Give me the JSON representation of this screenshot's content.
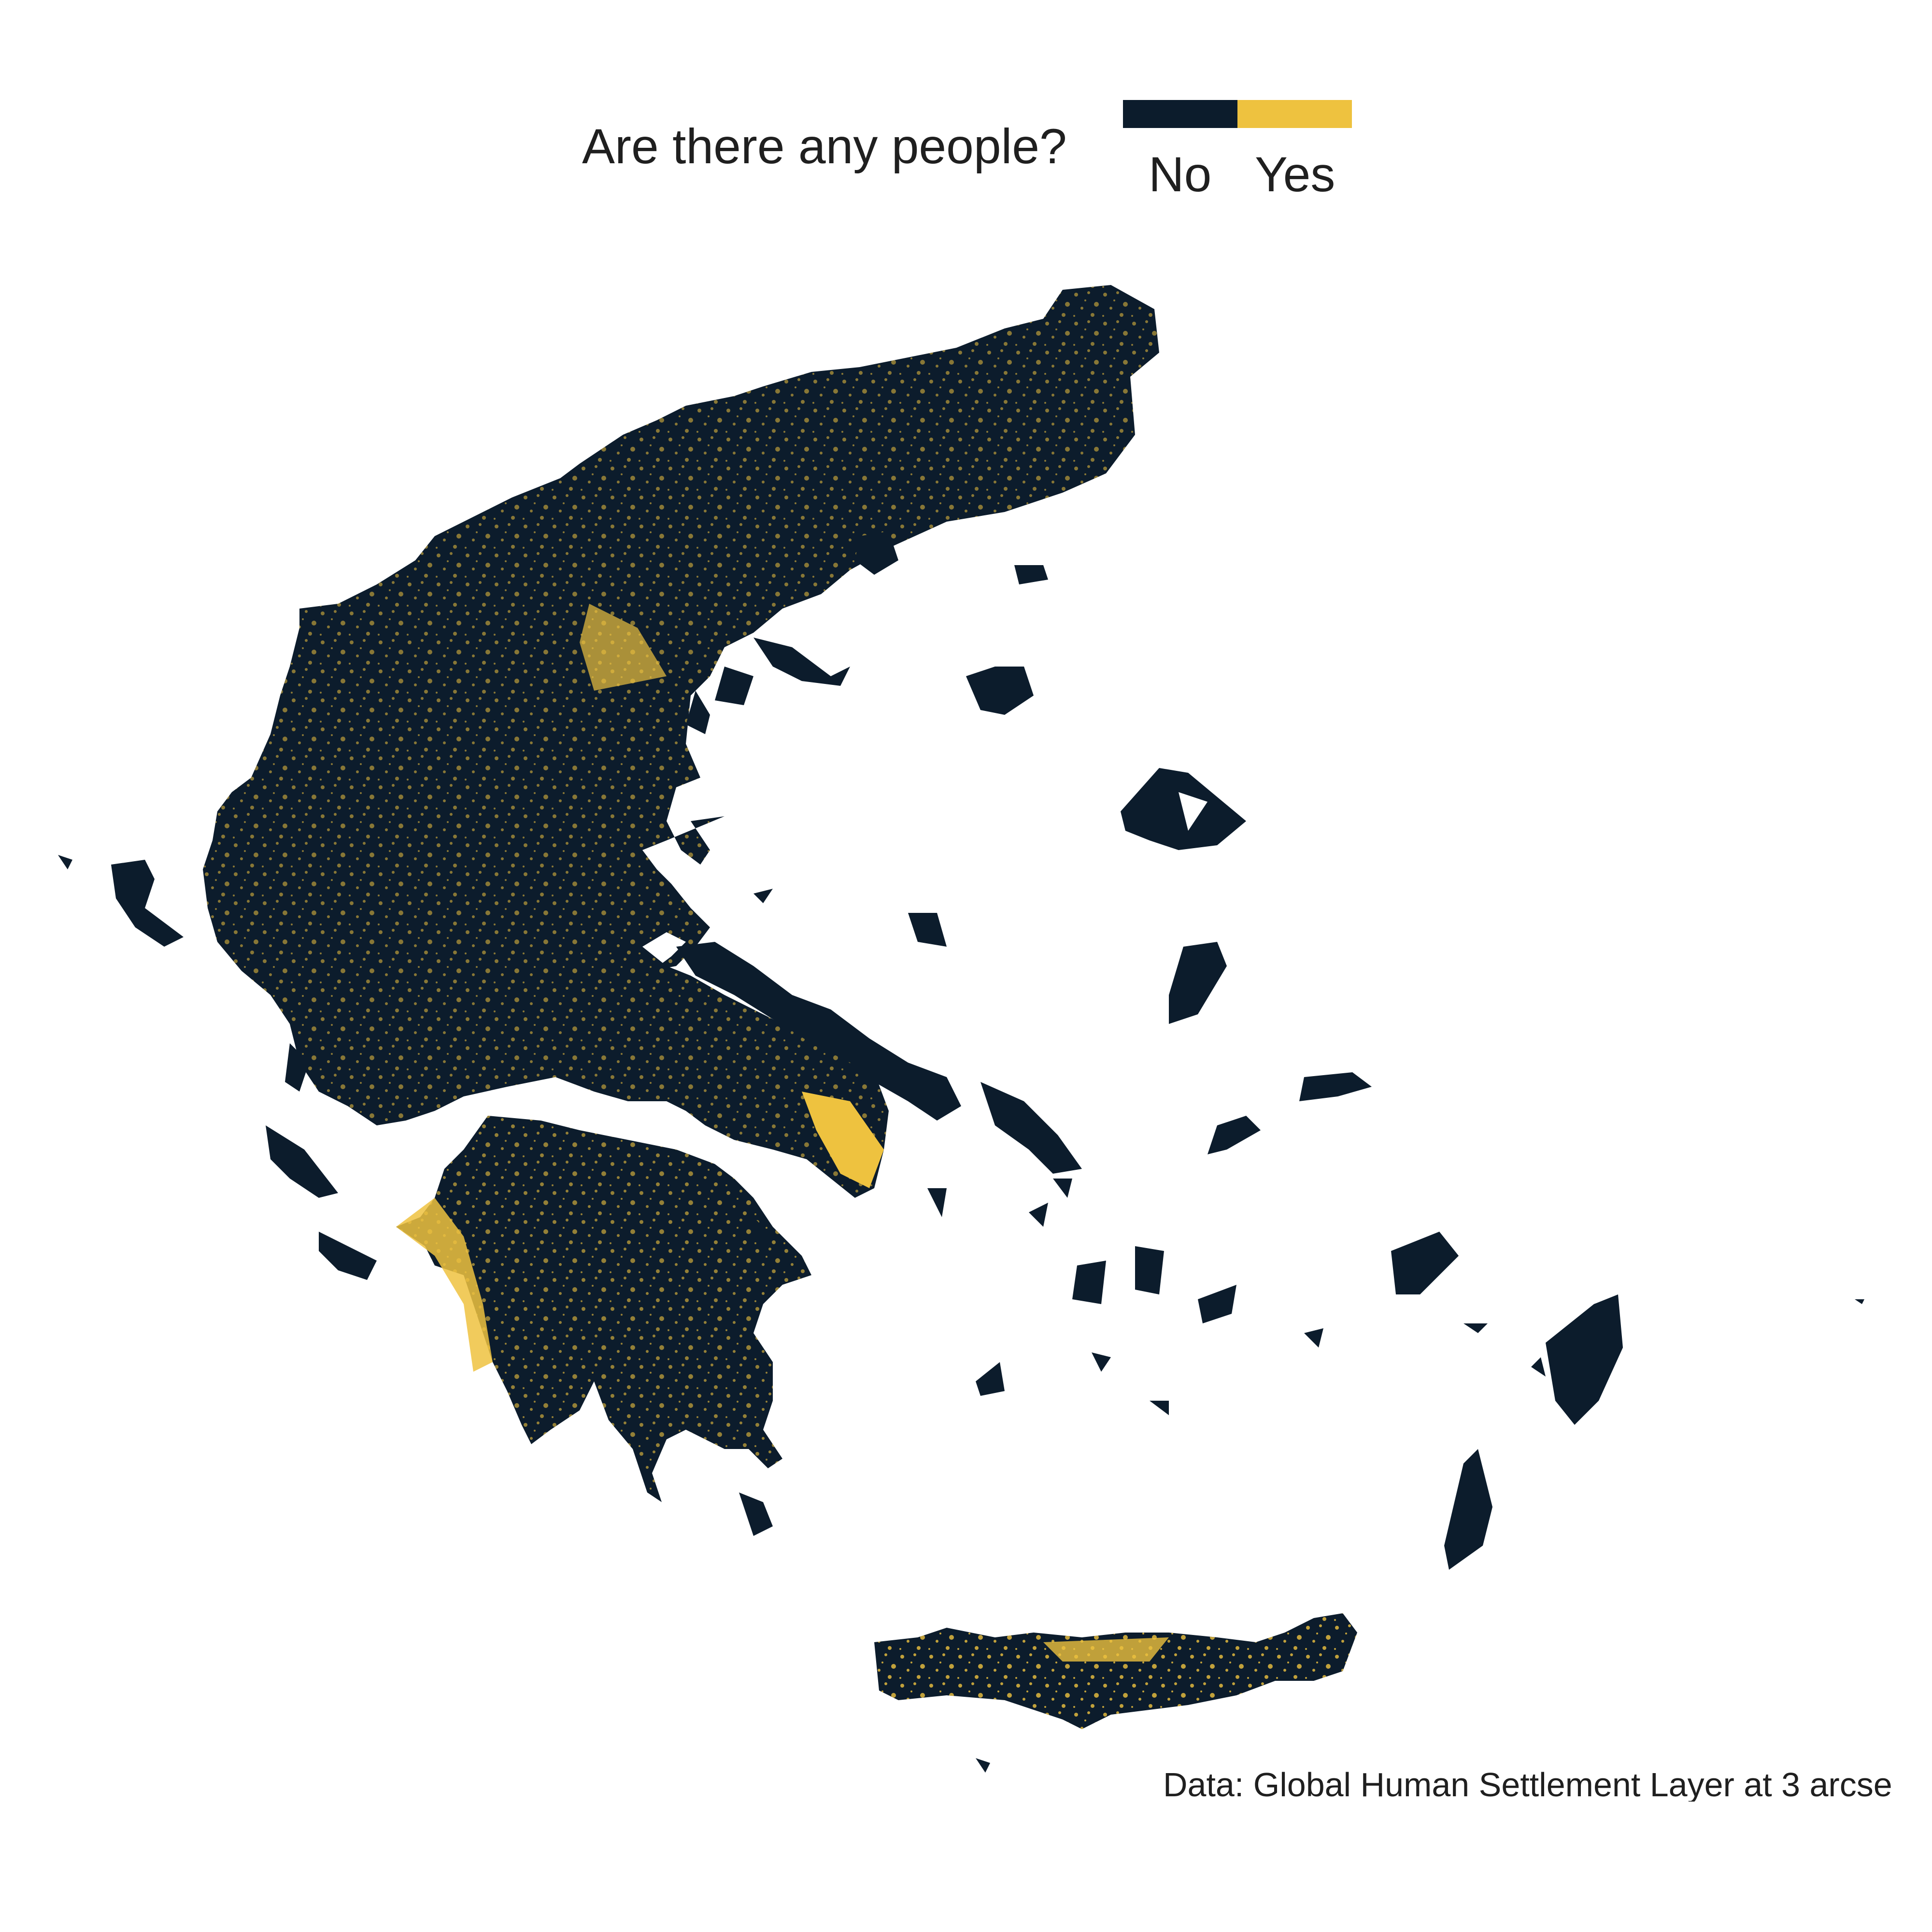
{
  "legend": {
    "title": "Are there any people?",
    "items": [
      {
        "label": "No",
        "color": "#0c1c2c"
      },
      {
        "label": "Yes",
        "color": "#eec23f"
      }
    ]
  },
  "caption": "Data: Global Human Settlement Layer at 3 arcse",
  "colors": {
    "land_unsettled": "#0c1c2c",
    "land_settled": "#eec23f",
    "background": "#ffffff"
  }
}
